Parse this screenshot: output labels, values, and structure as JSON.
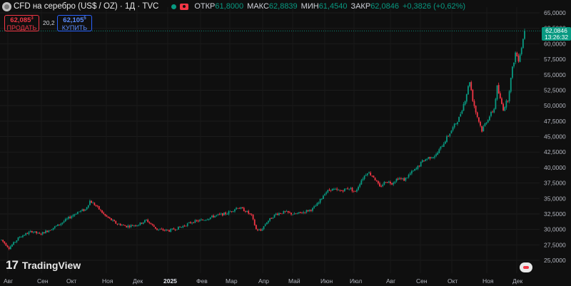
{
  "header": {
    "title": "CFD на серебро (US$ / OZ) · 1Д · TVC",
    "ohlc": [
      {
        "key": "ОТКР",
        "value": "61,8000"
      },
      {
        "key": "МАКС",
        "value": "62,8839"
      },
      {
        "key": "МИН",
        "value": "61,4540"
      },
      {
        "key": "ЗАКР",
        "value": "62,0846"
      }
    ],
    "change": "+0,3826 (+0,62%)"
  },
  "trade": {
    "sell_price": "62,085",
    "sell_sup": "3",
    "sell_label": "ПРОДАТЬ",
    "spread": "20,2",
    "buy_price": "62,105",
    "buy_sup": "5",
    "buy_label": "КУПИТЬ"
  },
  "last_price": {
    "value": "62,0846",
    "time": "13:26:32"
  },
  "branding": {
    "logo_mark": "17",
    "name": "TradingView"
  },
  "colors": {
    "up": "#089981",
    "down": "#f23645",
    "background": "#0f0f0f",
    "axis_text": "#b2b5be"
  },
  "chart_data": {
    "type": "candlestick",
    "title": "CFD на серебро (US$ / OZ) · 1Д · TVC",
    "y_axis": {
      "position": "right",
      "ticks": [
        "25,0000",
        "27,5000",
        "30,0000",
        "32,5000",
        "35,0000",
        "37,5000",
        "40,0000",
        "42,5000",
        "45,0000",
        "47,5000",
        "50,0000",
        "52,5000",
        "55,0000",
        "57,5000",
        "60,0000",
        "62,5000",
        "65,0000"
      ],
      "range": [
        23.8,
        65.5
      ]
    },
    "x_axis": {
      "labels": [
        "Авг",
        "Сен",
        "Окт",
        "Ноя",
        "Дек",
        "2025",
        "Фев",
        "Мар",
        "Апр",
        "Май",
        "Июн",
        "Июл",
        "Авг",
        "Сен",
        "Окт",
        "Ноя",
        "Дек"
      ],
      "bold_labels": [
        "2025"
      ]
    },
    "last_price_line": 62.0846,
    "anchors": [
      [
        0,
        28.3
      ],
      [
        5,
        27.0
      ],
      [
        12,
        28.8
      ],
      [
        20,
        29.7
      ],
      [
        25,
        29.2
      ],
      [
        32,
        30.0
      ],
      [
        38,
        30.8
      ],
      [
        45,
        32.0
      ],
      [
        50,
        32.8
      ],
      [
        55,
        33.2
      ],
      [
        58,
        34.6
      ],
      [
        62,
        33.8
      ],
      [
        68,
        32.2
      ],
      [
        75,
        31.0
      ],
      [
        82,
        30.5
      ],
      [
        90,
        30.8
      ],
      [
        95,
        31.5
      ],
      [
        102,
        30.0
      ],
      [
        110,
        29.8
      ],
      [
        118,
        30.4
      ],
      [
        125,
        31.2
      ],
      [
        132,
        31.5
      ],
      [
        140,
        32.2
      ],
      [
        148,
        32.6
      ],
      [
        155,
        33.6
      ],
      [
        160,
        33.0
      ],
      [
        164,
        32.2
      ],
      [
        167,
        30.0
      ],
      [
        170,
        29.8
      ],
      [
        174,
        31.2
      ],
      [
        180,
        32.5
      ],
      [
        186,
        32.8
      ],
      [
        192,
        32.4
      ],
      [
        198,
        32.8
      ],
      [
        204,
        33.3
      ],
      [
        208,
        34.3
      ],
      [
        212,
        35.9
      ],
      [
        216,
        36.5
      ],
      [
        222,
        36.2
      ],
      [
        228,
        36.7
      ],
      [
        232,
        36.0
      ],
      [
        236,
        38.0
      ],
      [
        240,
        39.3
      ],
      [
        244,
        38.5
      ],
      [
        248,
        36.8
      ],
      [
        252,
        37.8
      ],
      [
        256,
        37.5
      ],
      [
        260,
        38.3
      ],
      [
        264,
        38.0
      ],
      [
        268,
        39.0
      ],
      [
        272,
        39.8
      ],
      [
        276,
        41.0
      ],
      [
        280,
        41.6
      ],
      [
        285,
        42.0
      ],
      [
        290,
        44.0
      ],
      [
        295,
        46.0
      ],
      [
        300,
        48.0
      ],
      [
        304,
        51.0
      ],
      [
        307,
        54.0
      ],
      [
        309,
        51.0
      ],
      [
        311,
        49.0
      ],
      [
        313,
        47.5
      ],
      [
        315,
        46.0
      ],
      [
        318,
        47.5
      ],
      [
        320,
        48.3
      ],
      [
        323,
        49.5
      ],
      [
        325,
        53.0
      ],
      [
        327,
        51.0
      ],
      [
        329,
        49.5
      ],
      [
        332,
        51.0
      ],
      [
        335,
        56.0
      ],
      [
        337,
        58.5
      ],
      [
        339,
        57.5
      ],
      [
        341,
        59.5
      ],
      [
        343,
        62.08
      ]
    ]
  }
}
